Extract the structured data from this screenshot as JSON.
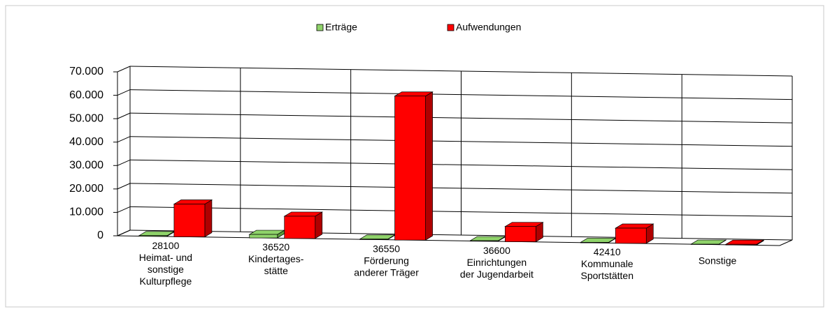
{
  "chart_data": {
    "type": "bar3d",
    "categories": [
      [
        "28100",
        "Heimat- und",
        "sonstige",
        "Kulturpflege"
      ],
      [
        "36520",
        "Kindertages-",
        "stätte"
      ],
      [
        "36550",
        "Förderung",
        "anderer Träger"
      ],
      [
        "36600",
        "Einrichtungen",
        "der Jugendarbeit"
      ],
      [
        "42410",
        "Kommunale",
        "Sportstätten"
      ],
      [
        "Sonstige"
      ]
    ],
    "series": [
      {
        "name": "Erträge",
        "color": "#8fd36a",
        "values": [
          300,
          1500,
          200,
          200,
          200,
          100
        ]
      },
      {
        "name": "Aufwendungen",
        "color": "#ff0000",
        "values": [
          14000,
          9500,
          61500,
          6500,
          6500,
          300
        ]
      }
    ],
    "ylim": [
      0,
      70000
    ],
    "yticks": [
      0,
      {
        "value": 10000,
        "label": "10.000"
      },
      {
        "value": 20000,
        "label": "20.000"
      },
      {
        "value": 30000,
        "label": "30.000"
      },
      {
        "value": 40000,
        "label": "40.000"
      },
      {
        "value": 50000,
        "label": "50.000"
      },
      {
        "value": 60000,
        "label": "60.000"
      },
      {
        "value": 70000,
        "label": "70.000"
      }
    ],
    "grid": true,
    "legend": "top"
  }
}
